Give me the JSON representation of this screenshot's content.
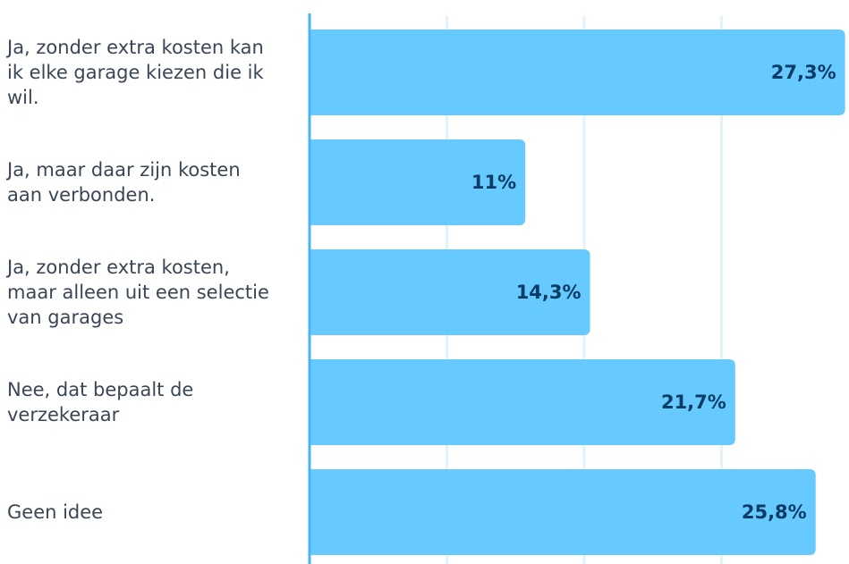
{
  "chart_data": {
    "type": "barh",
    "categories": [
      "Ja, zonder extra kosten kan ik elke garage kiezen die ik wil.",
      "Ja, maar daar zijn kosten aan verbonden.",
      "Ja, zonder extra kosten, maar alleen uit een selectie van garages",
      "Nee, dat bepaalt de verzekeraar",
      "Geen idee"
    ],
    "values": [
      27.3,
      11,
      14.3,
      21.7,
      25.8
    ],
    "value_labels": [
      "27,3%",
      "11%",
      "14,3%",
      "21,7%",
      "25,8%"
    ],
    "color": "#66caff",
    "xlim": [
      0,
      27.5
    ],
    "xticks": [
      7,
      14,
      21
    ],
    "grid": true
  }
}
